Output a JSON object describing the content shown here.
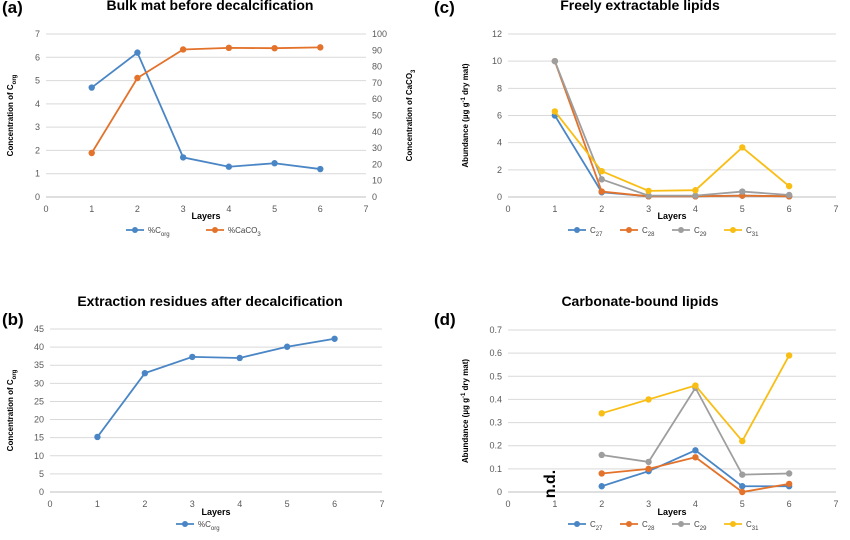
{
  "colors": {
    "blue": "#4a86c5",
    "orange": "#e3722b",
    "gray": "#9e9e9e",
    "yellow": "#f9be14",
    "grid": "#d9d9d9",
    "axis": "#bfbfbf",
    "tick_text": "#595959"
  },
  "chart_data": [
    {
      "id": "a",
      "panel_label": "(a)",
      "type": "line",
      "title": "Bulk mat before decalcification",
      "xlabel": "Layers",
      "ylabel": "Concentration of C",
      "ylabel_sub": "org",
      "y2label": "Concentration of CaCO",
      "y2label_sub": "3",
      "xlim": [
        0,
        7
      ],
      "x_ticks": [
        "0",
        "1",
        "2",
        "3",
        "4",
        "5",
        "6",
        "7"
      ],
      "ylim": [
        0,
        7
      ],
      "y_ticks": [
        "0",
        "1",
        "2",
        "3",
        "4",
        "5",
        "6",
        "7"
      ],
      "y2lim": [
        0,
        100
      ],
      "y2_ticks": [
        "0",
        "10",
        "20",
        "30",
        "40",
        "50",
        "60",
        "70",
        "80",
        "90",
        "100"
      ],
      "grid": true,
      "legend_position": "bottom",
      "series": [
        {
          "name": "%C",
          "name_sub": "org",
          "color": "#4a86c5",
          "axis": "left",
          "x": [
            1,
            2,
            3,
            4,
            5,
            6
          ],
          "values": [
            4.7,
            6.2,
            1.7,
            1.3,
            1.45,
            1.2
          ]
        },
        {
          "name": "%CaCO",
          "name_sub": "3",
          "color": "#e3722b",
          "axis": "right",
          "x": [
            1,
            2,
            3,
            4,
            5,
            6
          ],
          "values": [
            27,
            73,
            90.5,
            91.5,
            91.3,
            91.8
          ]
        }
      ]
    },
    {
      "id": "b",
      "panel_label": "(b)",
      "type": "line",
      "title": "Extraction residues after decalcification",
      "xlabel": "Layers",
      "ylabel": "Concentration of C",
      "ylabel_sub": "org",
      "xlim": [
        0,
        7
      ],
      "x_ticks": [
        "0",
        "1",
        "2",
        "3",
        "4",
        "5",
        "6",
        "7"
      ],
      "ylim": [
        0,
        45
      ],
      "y_ticks": [
        "0",
        "5",
        "10",
        "15",
        "20",
        "25",
        "30",
        "35",
        "40",
        "45"
      ],
      "grid": true,
      "legend_position": "bottom",
      "series": [
        {
          "name": "%C",
          "name_sub": "org",
          "color": "#4a86c5",
          "axis": "left",
          "x": [
            1,
            2,
            3,
            4,
            5,
            6
          ],
          "values": [
            15.2,
            32.8,
            37.3,
            37.0,
            40.1,
            42.3
          ]
        }
      ]
    },
    {
      "id": "c",
      "panel_label": "(c)",
      "type": "line",
      "title": "Freely extractable lipids",
      "xlabel": "Layers",
      "ylabel": "Abundance (µg g",
      "ylabel_sup": "-1",
      "ylabel_tail": " dry mat)",
      "xlim": [
        0,
        7
      ],
      "x_ticks": [
        "0",
        "1",
        "2",
        "3",
        "4",
        "5",
        "6",
        "7"
      ],
      "ylim": [
        0,
        12
      ],
      "y_ticks": [
        "0",
        "2",
        "4",
        "6",
        "8",
        "10",
        "12"
      ],
      "grid": true,
      "legend_position": "bottom",
      "series": [
        {
          "name": "C",
          "name_sub": "27",
          "color": "#4a86c5",
          "axis": "left",
          "x": [
            1,
            2,
            3,
            4,
            5,
            6
          ],
          "values": [
            6.0,
            0.35,
            0.05,
            0.05,
            0.1,
            0.05
          ]
        },
        {
          "name": "C",
          "name_sub": "28",
          "color": "#e3722b",
          "axis": "left",
          "x": [
            1,
            2,
            3,
            4,
            5,
            6
          ],
          "values": [
            10.0,
            0.4,
            0.05,
            0.05,
            0.1,
            0.05
          ]
        },
        {
          "name": "C",
          "name_sub": "29",
          "color": "#9e9e9e",
          "axis": "left",
          "x": [
            1,
            2,
            3,
            4,
            5,
            6
          ],
          "values": [
            10.0,
            1.3,
            0.1,
            0.1,
            0.4,
            0.15
          ]
        },
        {
          "name": "C",
          "name_sub": "31",
          "color": "#f9be14",
          "axis": "left",
          "x": [
            1,
            2,
            3,
            4,
            5,
            6
          ],
          "values": [
            6.3,
            1.9,
            0.45,
            0.5,
            3.65,
            0.8
          ]
        }
      ]
    },
    {
      "id": "d",
      "panel_label": "(d)",
      "type": "line",
      "title": "Carbonate-bound lipids",
      "xlabel": "Layers",
      "ylabel": "Abundance (µg g",
      "ylabel_sup": "-1",
      "ylabel_tail": " dry mat)",
      "xlim": [
        0,
        7
      ],
      "x_ticks": [
        "0",
        "1",
        "2",
        "3",
        "4",
        "5",
        "6",
        "7"
      ],
      "ylim": [
        0,
        0.7
      ],
      "y_ticks": [
        "0",
        "0.1",
        "0.2",
        "0.3",
        "0.4",
        "0.5",
        "0.6",
        "0.7"
      ],
      "grid": true,
      "legend_position": "bottom",
      "annotation": "n.d.",
      "annotation_x": 1,
      "series": [
        {
          "name": "C",
          "name_sub": "27",
          "color": "#4a86c5",
          "axis": "left",
          "x": [
            2,
            3,
            4,
            5,
            6
          ],
          "values": [
            0.025,
            0.09,
            0.18,
            0.025,
            0.025
          ]
        },
        {
          "name": "C",
          "name_sub": "28",
          "color": "#e3722b",
          "axis": "left",
          "x": [
            2,
            3,
            4,
            5,
            6
          ],
          "values": [
            0.08,
            0.1,
            0.15,
            0.0,
            0.035
          ]
        },
        {
          "name": "C",
          "name_sub": "29",
          "color": "#9e9e9e",
          "axis": "left",
          "x": [
            2,
            3,
            4,
            5,
            6
          ],
          "values": [
            0.16,
            0.13,
            0.45,
            0.075,
            0.08
          ]
        },
        {
          "name": "C",
          "name_sub": "31",
          "color": "#f9be14",
          "axis": "left",
          "x": [
            2,
            3,
            4,
            5,
            6
          ],
          "values": [
            0.34,
            0.4,
            0.46,
            0.22,
            0.59
          ]
        }
      ]
    }
  ]
}
